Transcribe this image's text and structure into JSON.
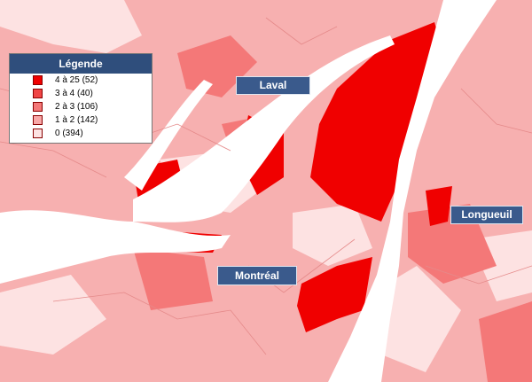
{
  "legend": {
    "title": "Légende",
    "items": [
      {
        "label": "4 à 25 (52)",
        "color": "#f00000"
      },
      {
        "label": "3 à 4 (40)",
        "color": "#f04545"
      },
      {
        "label": "2 à 3  (106)",
        "color": "#f47878"
      },
      {
        "label": "1 à 2  (142)",
        "color": "#f8a8a8"
      },
      {
        "label": "0  (394)",
        "color": "#fde2e2"
      }
    ]
  },
  "places": [
    {
      "label": "Laval"
    },
    {
      "label": "Montréal"
    },
    {
      "label": "Longueuil"
    }
  ]
}
